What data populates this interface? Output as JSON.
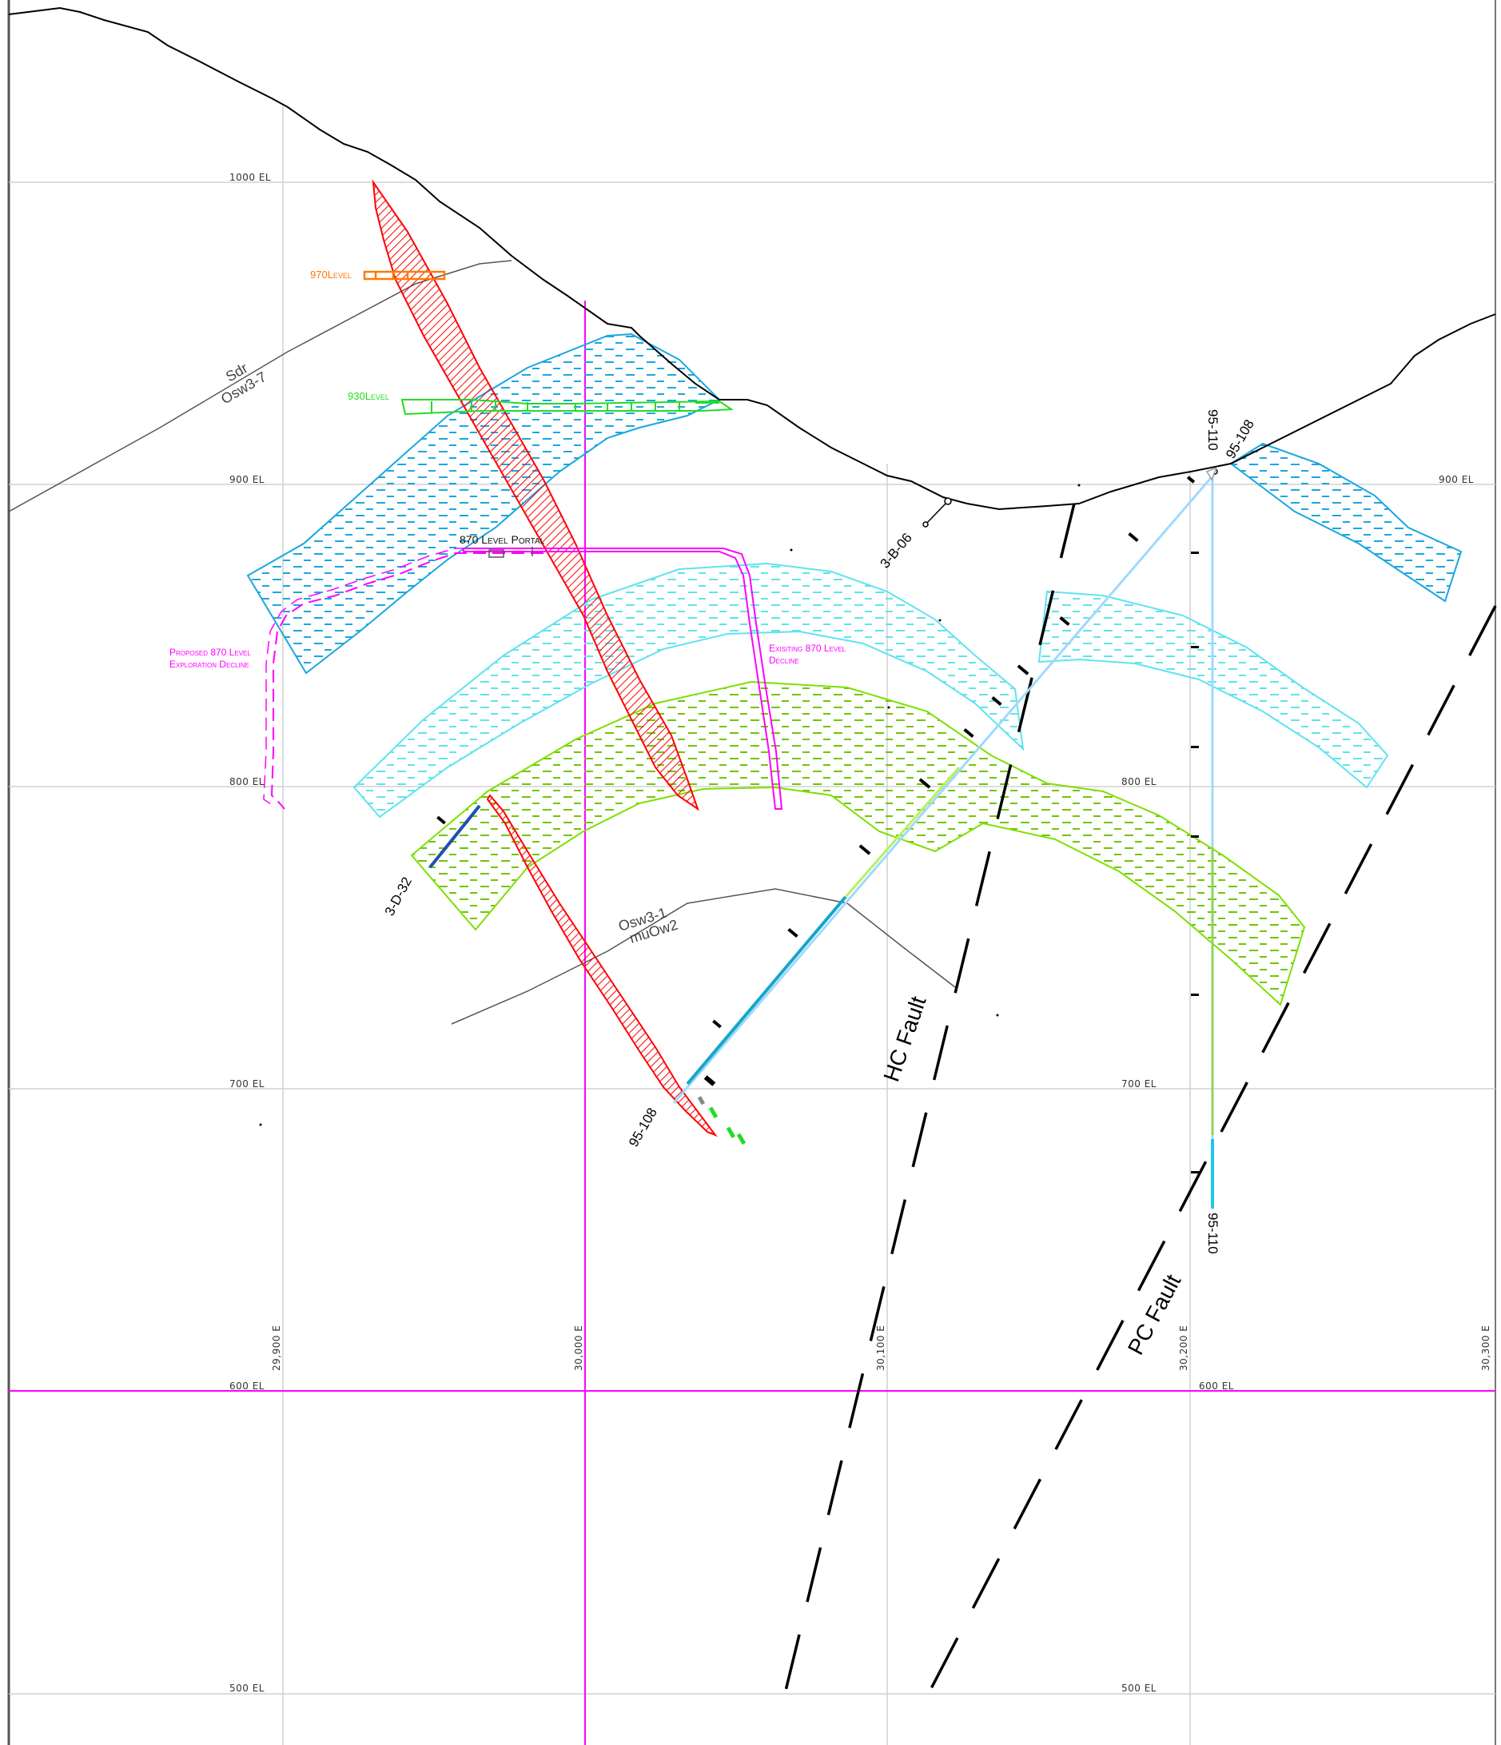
{
  "elevation_labels": [
    "1000 EL",
    "900 EL",
    "800 EL",
    "700 EL",
    "600 EL",
    "500 EL"
  ],
  "elevation_labels_right": [
    "900 EL",
    "800 EL",
    "700 EL",
    "600 EL",
    "500 EL"
  ],
  "easting_labels": [
    "29,900 E",
    "30,000 E",
    "30,100 E",
    "30,200 E",
    "30,300 E"
  ],
  "levels": {
    "level_970": "970Level",
    "level_930": "930Level",
    "portal_870": "870 Level Portal",
    "proposed_decline": [
      "Proposed 870 Level",
      "Exploration Decline"
    ],
    "existing_decline": [
      "Exisiting 870 Level",
      "Decline"
    ]
  },
  "contacts": {
    "upper": [
      "Sdr",
      "Osw3-7"
    ],
    "lower": [
      "Osw3-1",
      "muOw2"
    ]
  },
  "faults": {
    "hc": "HC Fault",
    "pc": "PC Fault"
  },
  "drillholes": {
    "hole_3d32": "3-D-32",
    "hole_3b06": "3-B-06",
    "hole_95108_collar": "95-108",
    "hole_95110_collar": "95-110",
    "hole_95108_toe": "95-108",
    "hole_95110_toe": "95-110"
  },
  "colors": {
    "topography": "#000000",
    "grid": "#d0d0d0",
    "magenta": "#ff00ff",
    "vein_red": "#ff0000",
    "zone_blue": "#19a7e0",
    "zone_cyan": "#5fe3f0",
    "zone_green": "#7ee000",
    "level_orange": "#ff7a00",
    "level_green": "#22dd22",
    "contact_gray": "#555555"
  }
}
